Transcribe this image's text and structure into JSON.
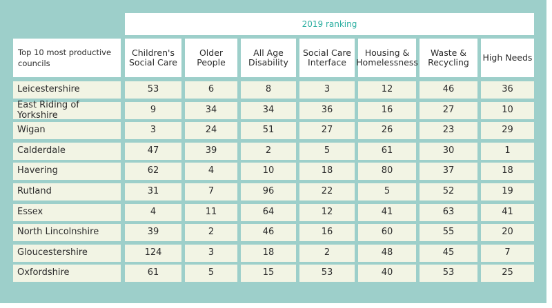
{
  "caption": "2019 ranking",
  "corner_label": "Top 10 most productive councils",
  "columns": [
    "Children's Social Care",
    "Older People",
    "All Age Disability",
    "Social Care Interface",
    "Housing & Homelessness",
    "Waste & Recycling",
    "High Needs"
  ],
  "rows": [
    {
      "name": "Leicestershire",
      "values": [
        "53",
        "6",
        "8",
        "3",
        "12",
        "46",
        "36"
      ]
    },
    {
      "name": "East Riding of Yorkshire",
      "values": [
        "9",
        "34",
        "34",
        "36",
        "16",
        "27",
        "10"
      ]
    },
    {
      "name": "Wigan",
      "values": [
        "3",
        "24",
        "51",
        "27",
        "26",
        "23",
        "29"
      ]
    },
    {
      "name": "Calderdale",
      "values": [
        "47",
        "39",
        "2",
        "5",
        "61",
        "30",
        "1"
      ]
    },
    {
      "name": "Havering",
      "values": [
        "62",
        "4",
        "10",
        "18",
        "80",
        "37",
        "18"
      ]
    },
    {
      "name": "Rutland",
      "values": [
        "31",
        "7",
        "96",
        "22",
        "5",
        "52",
        "19"
      ]
    },
    {
      "name": "Essex",
      "values": [
        "4",
        "11",
        "64",
        "12",
        "41",
        "63",
        "41"
      ]
    },
    {
      "name": "North Lincolnshire",
      "values": [
        "39",
        "2",
        "46",
        "16",
        "60",
        "55",
        "20"
      ]
    },
    {
      "name": "Gloucestershire",
      "values": [
        "124",
        "3",
        "18",
        "2",
        "48",
        "45",
        "7"
      ]
    },
    {
      "name": "Oxfordshire",
      "values": [
        "61",
        "5",
        "15",
        "53",
        "40",
        "53",
        "25"
      ]
    }
  ],
  "colors": {
    "frame": "#9dcfca",
    "caption": "#2aaea0",
    "header_bg": "#ffffff",
    "row_bg": "#f2f4e4"
  }
}
